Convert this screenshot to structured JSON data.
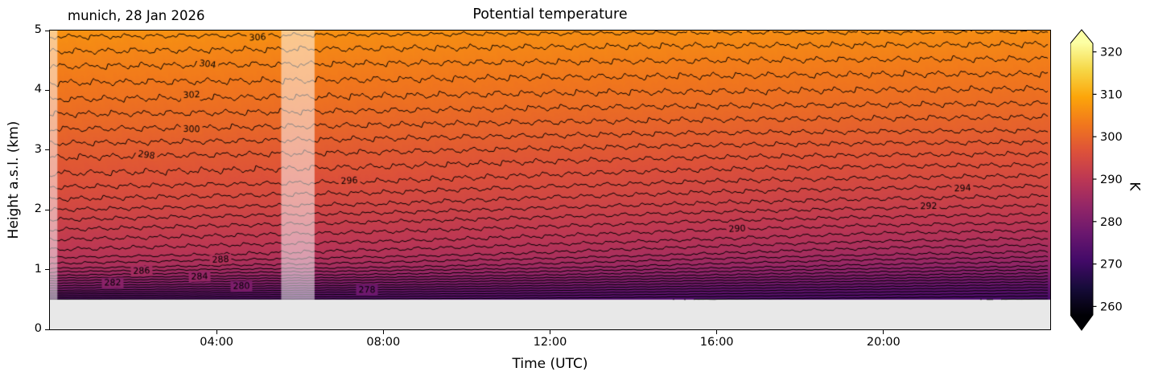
{
  "figure": {
    "title": "Potential temperature",
    "annotation": "munich, 28 Jan 2026",
    "xlabel": "Time (UTC)",
    "ylabel": "Height a.s.l. (km)"
  },
  "chart_data": {
    "type": "filled_contour",
    "title": "Potential temperature",
    "annotation": "munich, 28 Jan 2026",
    "xlabel": "Time (UTC)",
    "ylabel": "Height a.s.l. (km)",
    "x_range_hours": [
      0,
      24
    ],
    "y_range_km": [
      0,
      5
    ],
    "data_floor_km": 0.5,
    "below_ground_color": "#e8e8e8",
    "contour_line_color": "#000000",
    "x_ticks": [
      {
        "t": 4,
        "label": "04:00"
      },
      {
        "t": 8,
        "label": "08:00"
      },
      {
        "t": 12,
        "label": "12:00"
      },
      {
        "t": 16,
        "label": "16:00"
      },
      {
        "t": 20,
        "label": "20:00"
      }
    ],
    "y_ticks": [
      {
        "z": 0,
        "label": "0"
      },
      {
        "z": 1,
        "label": "1"
      },
      {
        "z": 2,
        "label": "2"
      },
      {
        "z": 3,
        "label": "3"
      },
      {
        "z": 4,
        "label": "4"
      },
      {
        "z": 5,
        "label": "5"
      }
    ],
    "colorbar": {
      "label": "K",
      "vmin": 258,
      "vmax": 322,
      "ticks": [
        260,
        270,
        280,
        290,
        300,
        310,
        320
      ],
      "colormap": "inferno",
      "stops": [
        [
          0.0,
          "#000004"
        ],
        [
          0.1,
          "#160b39"
        ],
        [
          0.2,
          "#420a68"
        ],
        [
          0.3,
          "#6a176e"
        ],
        [
          0.4,
          "#932667"
        ],
        [
          0.5,
          "#bc3754"
        ],
        [
          0.6,
          "#dd513a"
        ],
        [
          0.7,
          "#f1771d"
        ],
        [
          0.8,
          "#fca50a"
        ],
        [
          0.9,
          "#f6d746"
        ],
        [
          1.0,
          "#fcffa4"
        ]
      ]
    },
    "contours": {
      "interval_K": 1,
      "labeled_levels": [
        278,
        280,
        282,
        284,
        286,
        288,
        290,
        292,
        294,
        296,
        298,
        300,
        302,
        304,
        306
      ],
      "label_positions": {
        "278": 7.6,
        "280": 4.6,
        "282": 1.5,
        "284": 3.6,
        "286": 2.2,
        "288": 4.1,
        "290": 16.5,
        "292": 21.1,
        "294": 21.9,
        "296": 7.2,
        "298": 2.3,
        "300": 3.4,
        "302": 3.4,
        "304": 3.8,
        "306": 5.0
      }
    },
    "field": {
      "times_h": [
        0,
        4,
        8,
        12,
        16,
        20,
        24
      ],
      "heights_km": [
        0.55,
        0.65,
        0.75,
        0.9,
        1.05,
        1.25,
        1.5,
        1.8,
        2.1,
        2.5,
        2.9,
        3.35,
        3.85,
        4.4,
        4.9,
        5.0
      ],
      "theta_K": [
        [
          275.5,
          279.0,
          281.5,
          285.0,
          287.5,
          289.5,
          291.0,
          292.8,
          294.6,
          296.6,
          298.1,
          300.0,
          302.0,
          304.0,
          306.0,
          306.6
        ],
        [
          275.2,
          278.2,
          280.8,
          284.2,
          286.8,
          289.0,
          290.6,
          292.4,
          294.3,
          296.4,
          297.9,
          299.9,
          301.9,
          303.9,
          305.9,
          306.5
        ],
        [
          275.0,
          277.6,
          280.2,
          283.6,
          286.2,
          288.4,
          290.2,
          292.0,
          294.0,
          296.1,
          297.7,
          299.7,
          301.8,
          303.8,
          305.8,
          306.4
        ],
        [
          274.6,
          277.0,
          279.4,
          282.8,
          285.4,
          287.7,
          289.6,
          291.5,
          293.4,
          295.6,
          297.4,
          299.5,
          301.6,
          303.7,
          305.7,
          306.3
        ],
        [
          274.0,
          276.2,
          278.5,
          281.8,
          284.4,
          286.8,
          288.9,
          290.9,
          292.9,
          295.1,
          297.1,
          299.3,
          301.5,
          303.6,
          305.6,
          306.2
        ],
        [
          273.4,
          275.5,
          277.7,
          280.9,
          283.5,
          286.0,
          288.2,
          290.4,
          292.5,
          294.8,
          296.9,
          299.2,
          301.4,
          303.5,
          305.6,
          306.2
        ],
        [
          272.8,
          274.8,
          277.0,
          280.2,
          282.9,
          285.5,
          287.8,
          290.1,
          292.2,
          294.6,
          296.8,
          299.1,
          301.3,
          303.5,
          305.5,
          306.1
        ]
      ]
    },
    "missing_bands_h": [
      [
        0,
        0.18
      ],
      [
        5.55,
        6.35
      ]
    ],
    "noise": {
      "amplitude_K": 0.25
    }
  }
}
